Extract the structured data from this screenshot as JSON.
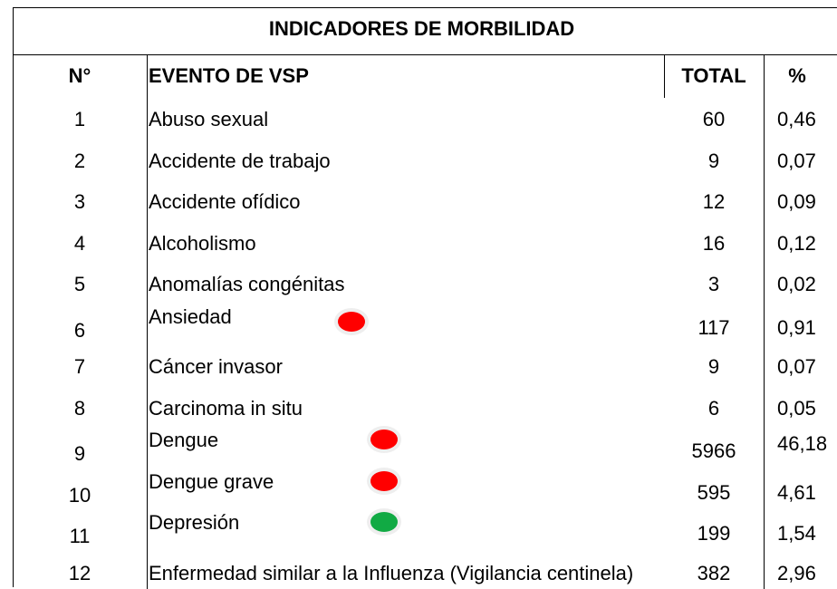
{
  "table": {
    "title": "INDICADORES DE MORBILIDAD",
    "headers": [
      "N°",
      "EVENTO DE VSP",
      "TOTAL",
      "%"
    ],
    "rows": [
      [
        "1",
        "Abuso sexual",
        "60",
        "0,46"
      ],
      [
        "2",
        "Accidente de trabajo",
        "9",
        "0,07"
      ],
      [
        "3",
        "Accidente ofídico",
        "12",
        "0,09"
      ],
      [
        "4",
        "Alcoholismo",
        "16",
        "0,12"
      ],
      [
        "5",
        "Anomalías congénitas",
        "3",
        "0,02"
      ],
      [
        "6",
        "Ansiedad",
        "117",
        "0,91"
      ],
      [
        "7",
        "Cáncer invasor",
        "9",
        "0,07"
      ],
      [
        "8",
        "Carcinoma in situ",
        "6",
        "0,05"
      ],
      [
        "9",
        "Dengue",
        "5966",
        "46,18"
      ],
      [
        "10",
        "Dengue grave",
        "595",
        "4,61"
      ],
      [
        "11",
        "Depresión",
        "199",
        "1,54"
      ],
      [
        "12",
        "Enfermedad similar a la Influenza (Vigilancia centinela)",
        "382",
        "2,96"
      ]
    ],
    "markers": {
      "5": "#ff0000",
      "8": "#ff0000",
      "9": "#ff0000",
      "10": "#11aa44"
    }
  }
}
